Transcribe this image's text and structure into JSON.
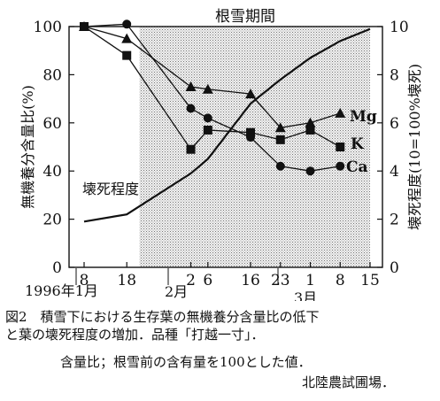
{
  "chart_data": {
    "type": "line",
    "x_tick_labels": [
      "8",
      "18",
      "2",
      "6",
      "16",
      "23",
      "1",
      "8",
      "15"
    ],
    "x_dates": [
      "1996-01-08",
      "1996-01-18",
      "1996-02-02",
      "1996-02-06",
      "1996-02-16",
      "1996-02-23",
      "1996-03-01",
      "1996-03-08",
      "1996-03-15"
    ],
    "month_labels": [
      "1996年1月",
      "2月",
      "3月"
    ],
    "ylim_left": [
      0,
      100
    ],
    "y_ticks_left": [
      0,
      20,
      40,
      60,
      80,
      100
    ],
    "ylim_right": [
      0,
      10
    ],
    "y_ticks_right": [
      0,
      2,
      4,
      6,
      8,
      10
    ],
    "ylabel_left": "無機養分含量比(%)",
    "ylabel_right": "壊死程度(10=100%壊死)",
    "shaded_period_label": "根雪期間",
    "shaded_period": [
      "1996-01-21",
      "1996-03-15"
    ],
    "series": [
      {
        "name": "Mg",
        "axis": "left",
        "marker": "triangle",
        "x": [
          "1996-01-08",
          "1996-01-18",
          "1996-02-02",
          "1996-02-06",
          "1996-02-16",
          "1996-02-23",
          "1996-03-01",
          "1996-03-08"
        ],
        "values": [
          100,
          95,
          75,
          74,
          72,
          58,
          60,
          64
        ]
      },
      {
        "name": "K",
        "axis": "left",
        "marker": "square",
        "x": [
          "1996-01-08",
          "1996-01-18",
          "1996-02-02",
          "1996-02-06",
          "1996-02-16",
          "1996-02-23",
          "1996-03-01",
          "1996-03-08"
        ],
        "values": [
          100,
          88,
          49,
          57,
          56,
          53,
          57,
          50
        ]
      },
      {
        "name": "Ca",
        "axis": "left",
        "marker": "circle",
        "x": [
          "1996-01-08",
          "1996-01-18",
          "1996-02-02",
          "1996-02-06",
          "1996-02-16",
          "1996-02-23",
          "1996-03-01",
          "1996-03-08"
        ],
        "values": [
          100,
          101,
          66,
          62,
          54,
          42,
          40,
          42
        ]
      },
      {
        "name": "壊死程度",
        "axis": "right",
        "marker": "none",
        "x": [
          "1996-01-08",
          "1996-01-18",
          "1996-02-02",
          "1996-02-06",
          "1996-02-16",
          "1996-02-23",
          "1996-03-01",
          "1996-03-08",
          "1996-03-15"
        ],
        "values": [
          1.9,
          2.2,
          3.9,
          4.5,
          6.8,
          7.8,
          8.7,
          9.4,
          9.9
        ]
      }
    ]
  },
  "caption": {
    "line1": "図2　積雪下における生存葉の無機養分含量比の低下",
    "line2": "と葉の壊死程度の増加．品種「打越一寸」．",
    "line3": "含量比；根雪前の含有量を100とした値．",
    "source": "北陸農試圃場．"
  }
}
